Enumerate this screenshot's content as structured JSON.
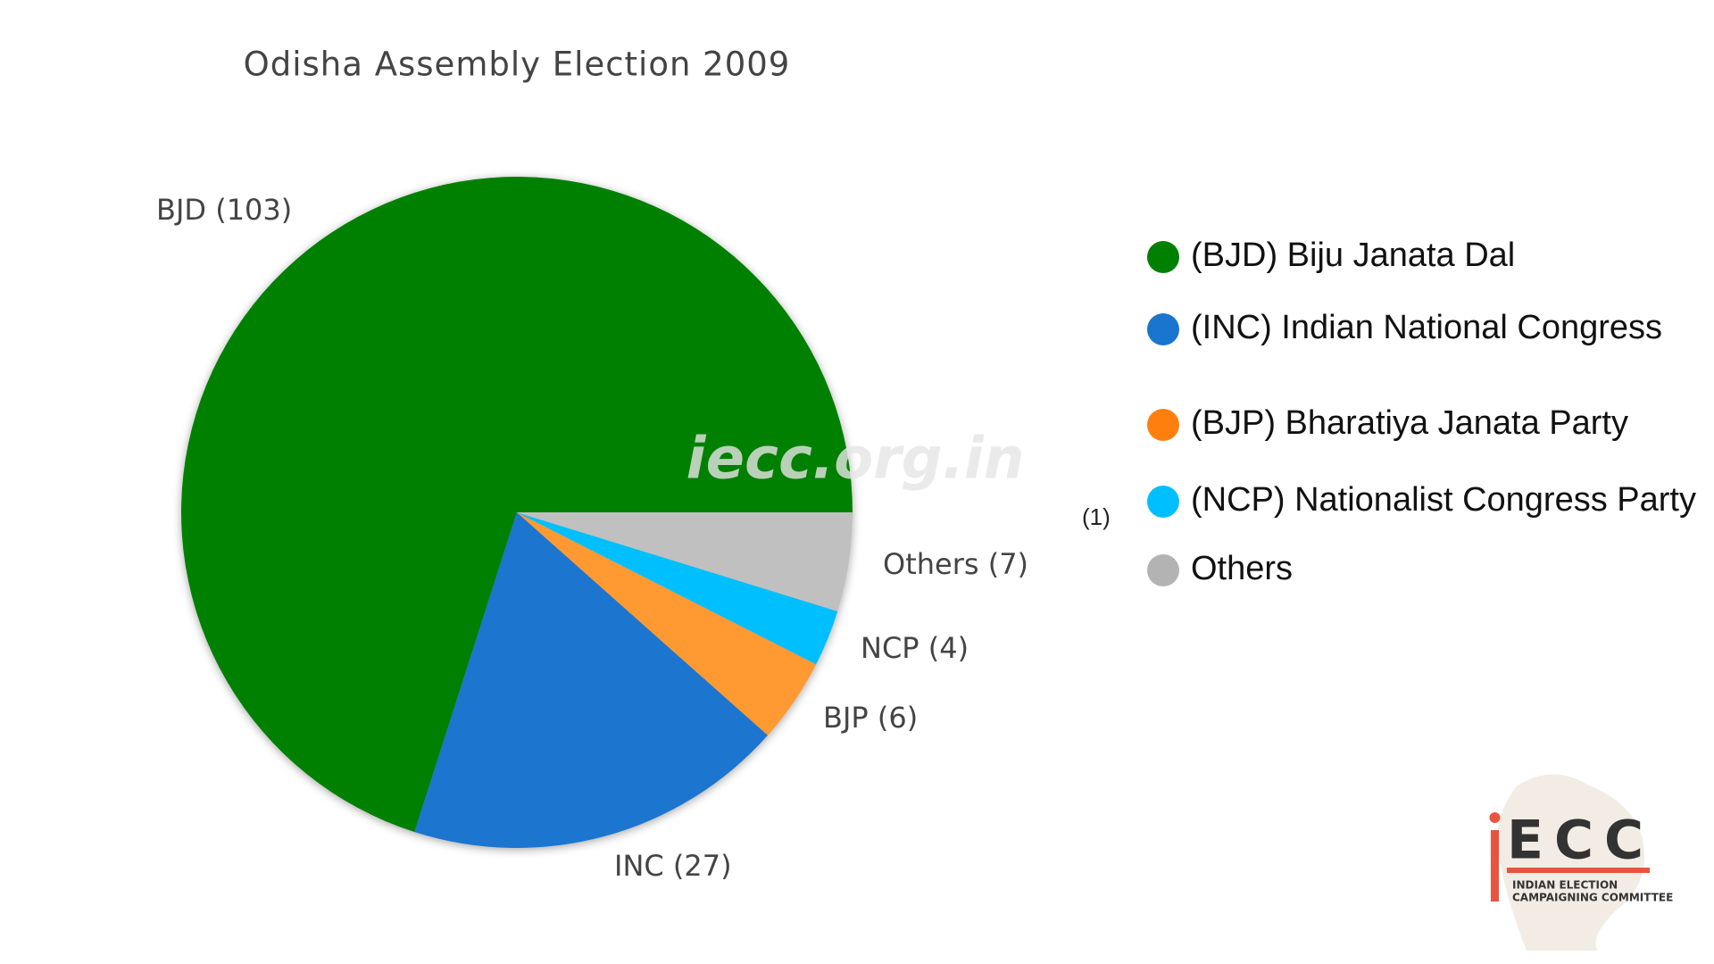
{
  "chart_data": {
    "type": "pie",
    "title": "Odisha Assembly Election 2009",
    "categories": [
      "(BJD) Biju Janata Dal",
      "(INC) Indian National Congress",
      "(BJP) Bharatiya Janata Party",
      "(NCP)  Nationalist Congress Party",
      "Others"
    ],
    "values": [
      103,
      27,
      6,
      4,
      7
    ],
    "value_labels": [
      "BJD (103)",
      "INC (27)",
      "BJP (6)",
      "NCP (4)",
      "Others (7)"
    ],
    "colors": [
      "#008000",
      "#1a75cf",
      "#ff9933",
      "#00bfff",
      "#c0c0c0"
    ],
    "legend_colors": [
      "#008000",
      "#1a75cf",
      "#ff7f0e",
      "#00bfff",
      "#b3b3b3"
    ],
    "annotations": [
      "(1)"
    ]
  },
  "watermark": "iecc.org.in",
  "logo": {
    "mark": "ECC",
    "caption": [
      "INDIAN ELECTION",
      "CAMPAIGNING COMMITTEE"
    ]
  }
}
